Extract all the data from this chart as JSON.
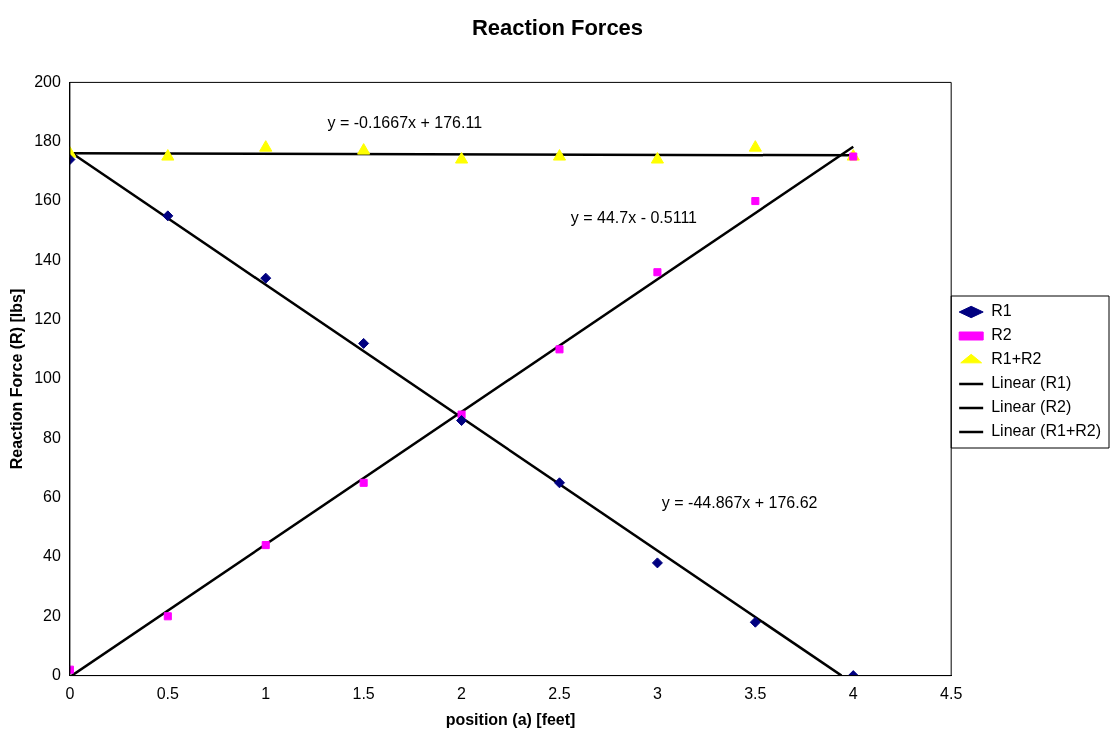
{
  "chart_data": {
    "type": "scatter",
    "title": "Reaction Forces",
    "xlabel": "position (a) [feet]",
    "ylabel": "Reaction Force (R) [lbs]",
    "xlim": [
      0,
      4.5
    ],
    "xticks": [
      0,
      0.5,
      1,
      1.5,
      2,
      2.5,
      3,
      3.5,
      4,
      4.5
    ],
    "ylim": [
      0,
      200
    ],
    "yticks": [
      0,
      20,
      40,
      60,
      80,
      100,
      120,
      140,
      160,
      180,
      200
    ],
    "grid": false,
    "legend": "right",
    "series": [
      {
        "name": "R1",
        "type": "scatter",
        "marker": "diamond",
        "color": "#000080",
        "x": [
          0,
          0.5,
          1,
          1.5,
          2,
          2.5,
          3,
          3.5,
          4
        ],
        "values": [
          174,
          155,
          134,
          112,
          86,
          65,
          38,
          18,
          0
        ]
      },
      {
        "name": "R2",
        "type": "scatter",
        "marker": "square",
        "color": "#ff00ff",
        "x": [
          0,
          0.5,
          1,
          1.5,
          2,
          2.5,
          3,
          3.5,
          4
        ],
        "values": [
          2,
          20,
          44,
          65,
          88,
          110,
          136,
          160,
          175
        ]
      },
      {
        "name": "R1+R2",
        "type": "scatter",
        "marker": "triangle",
        "color": "#ffff00",
        "x": [
          0,
          0.5,
          1,
          1.5,
          2,
          2.5,
          3,
          3.5,
          4
        ],
        "values": [
          176,
          175,
          178,
          177,
          174,
          175,
          174,
          178,
          175
        ]
      },
      {
        "name": "Linear (R1)",
        "type": "line",
        "marker": "none",
        "line_style": "solid",
        "color": "#000000",
        "x": [
          0,
          3.94
        ],
        "values": [
          176.6,
          0
        ]
      },
      {
        "name": "Linear (R2)",
        "type": "line",
        "marker": "none",
        "line_style": "solid",
        "color": "#000000",
        "x": [
          0.01,
          4
        ],
        "values": [
          0,
          178.3
        ]
      },
      {
        "name": "Linear (R1+R2)",
        "type": "line",
        "marker": "none",
        "line_style": "solid",
        "color": "#000000",
        "x": [
          0,
          4
        ],
        "values": [
          176.1,
          175.4
        ]
      }
    ],
    "annotations": [
      "y = -0.1667x + 176.11",
      "y = 44.7x - 0.5111",
      "y = -44.867x + 176.62"
    ]
  }
}
